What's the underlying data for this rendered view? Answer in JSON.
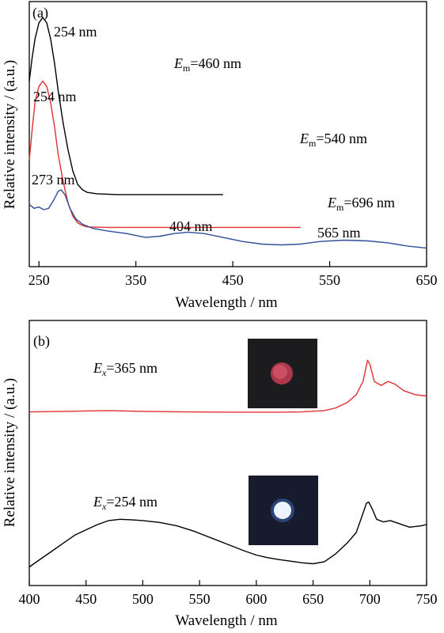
{
  "chart_data": [
    {
      "type": "line",
      "panel_label": "(a)",
      "xlabel": "Wavelength / nm",
      "ylabel": "Relative intensity / (a.u.)",
      "xlim": [
        240,
        650
      ],
      "x_ticks": [
        250,
        350,
        450,
        550,
        650
      ],
      "x_tick_labels": [
        "250",
        "350",
        "450",
        "550",
        "650"
      ],
      "y_ticks_labeled": false,
      "grid": false,
      "series": [
        {
          "color": "#000000",
          "emission_label": {
            "sym": "E",
            "sub": "m",
            "text": "=460 nm"
          },
          "points": [
            [
              240,
              0.7
            ],
            [
              243,
              0.79
            ],
            [
              246,
              0.86
            ],
            [
              250,
              0.92
            ],
            [
              254,
              0.94
            ],
            [
              258,
              0.92
            ],
            [
              262,
              0.86
            ],
            [
              266,
              0.77
            ],
            [
              270,
              0.66
            ],
            [
              275,
              0.54
            ],
            [
              280,
              0.44
            ],
            [
              285,
              0.36
            ],
            [
              290,
              0.31
            ],
            [
              295,
              0.29
            ],
            [
              300,
              0.28
            ],
            [
              310,
              0.275
            ],
            [
              330,
              0.272
            ],
            [
              360,
              0.272
            ],
            [
              400,
              0.272
            ],
            [
              440,
              0.272
            ]
          ],
          "peaks": [
            {
              "label": "254 nm",
              "x": 254
            }
          ]
        },
        {
          "color": "#e03030",
          "emission_label": {
            "sym": "E",
            "sub": "m",
            "text": "=540 nm"
          },
          "points": [
            [
              240,
              0.4
            ],
            [
              243,
              0.52
            ],
            [
              246,
              0.62
            ],
            [
              250,
              0.68
            ],
            [
              254,
              0.7
            ],
            [
              258,
              0.68
            ],
            [
              262,
              0.62
            ],
            [
              266,
              0.53
            ],
            [
              270,
              0.42
            ],
            [
              275,
              0.32
            ],
            [
              280,
              0.24
            ],
            [
              285,
              0.19
            ],
            [
              290,
              0.165
            ],
            [
              295,
              0.155
            ],
            [
              300,
              0.15
            ],
            [
              320,
              0.148
            ],
            [
              360,
              0.148
            ],
            [
              420,
              0.148
            ],
            [
              480,
              0.148
            ],
            [
              520,
              0.148
            ]
          ],
          "peaks": [
            {
              "label": "254 nm",
              "x": 254
            }
          ]
        },
        {
          "color": "#2e4d9a",
          "emission_label": {
            "sym": "E",
            "sub": "m",
            "text": "=696 nm"
          },
          "points": [
            [
              240,
              0.235
            ],
            [
              245,
              0.22
            ],
            [
              250,
              0.225
            ],
            [
              255,
              0.215
            ],
            [
              260,
              0.22
            ],
            [
              265,
              0.25
            ],
            [
              270,
              0.285
            ],
            [
              273,
              0.29
            ],
            [
              277,
              0.27
            ],
            [
              282,
              0.22
            ],
            [
              288,
              0.18
            ],
            [
              295,
              0.16
            ],
            [
              305,
              0.145
            ],
            [
              320,
              0.135
            ],
            [
              340,
              0.125
            ],
            [
              360,
              0.11
            ],
            [
              375,
              0.115
            ],
            [
              390,
              0.125
            ],
            [
              404,
              0.13
            ],
            [
              420,
              0.125
            ],
            [
              440,
              0.11
            ],
            [
              460,
              0.095
            ],
            [
              480,
              0.085
            ],
            [
              500,
              0.082
            ],
            [
              520,
              0.085
            ],
            [
              540,
              0.095
            ],
            [
              565,
              0.1
            ],
            [
              590,
              0.097
            ],
            [
              610,
              0.09
            ],
            [
              630,
              0.078
            ],
            [
              650,
              0.07
            ]
          ],
          "peaks": [
            {
              "label": "273 nm",
              "x": 273
            },
            {
              "label": "404 nm",
              "x": 404
            },
            {
              "label": "565 nm",
              "x": 565
            }
          ]
        }
      ]
    },
    {
      "type": "line",
      "panel_label": "(b)",
      "xlabel": "Wavelength / nm",
      "ylabel": "Relative intensity / (a.u.)",
      "xlim": [
        400,
        750
      ],
      "x_ticks": [
        400,
        450,
        500,
        550,
        600,
        650,
        700,
        750
      ],
      "x_tick_labels": [
        "400",
        "450",
        "500",
        "550",
        "600",
        "650",
        "700",
        "750"
      ],
      "y_ticks_labeled": false,
      "grid": false,
      "series": [
        {
          "color": "#e03030",
          "excitation_label": {
            "sym": "E",
            "sub": "x",
            "text": "=365 nm"
          },
          "points": [
            [
              400,
              0.655
            ],
            [
              430,
              0.657
            ],
            [
              470,
              0.66
            ],
            [
              500,
              0.657
            ],
            [
              540,
              0.655
            ],
            [
              580,
              0.654
            ],
            [
              620,
              0.654
            ],
            [
              640,
              0.655
            ],
            [
              660,
              0.66
            ],
            [
              670,
              0.67
            ],
            [
              680,
              0.69
            ],
            [
              688,
              0.72
            ],
            [
              694,
              0.77
            ],
            [
              698,
              0.85
            ],
            [
              700,
              0.835
            ],
            [
              704,
              0.77
            ],
            [
              710,
              0.755
            ],
            [
              716,
              0.77
            ],
            [
              722,
              0.76
            ],
            [
              730,
              0.735
            ],
            [
              740,
              0.72
            ],
            [
              750,
              0.715
            ]
          ],
          "inset": {
            "description": "red luminescent dot",
            "color": "#d04a5e"
          }
        },
        {
          "color": "#000000",
          "excitation_label": {
            "sym": "E",
            "sub": "x",
            "text": "=254 nm"
          },
          "points": [
            [
              400,
              0.07
            ],
            [
              410,
              0.1
            ],
            [
              420,
              0.13
            ],
            [
              430,
              0.16
            ],
            [
              440,
              0.19
            ],
            [
              450,
              0.21
            ],
            [
              460,
              0.23
            ],
            [
              470,
              0.245
            ],
            [
              480,
              0.25
            ],
            [
              490,
              0.248
            ],
            [
              500,
              0.245
            ],
            [
              515,
              0.238
            ],
            [
              530,
              0.225
            ],
            [
              545,
              0.205
            ],
            [
              560,
              0.18
            ],
            [
              575,
              0.155
            ],
            [
              590,
              0.13
            ],
            [
              600,
              0.115
            ],
            [
              610,
              0.105
            ],
            [
              620,
              0.098
            ],
            [
              630,
              0.092
            ],
            [
              640,
              0.086
            ],
            [
              650,
              0.082
            ],
            [
              660,
              0.09
            ],
            [
              670,
              0.12
            ],
            [
              680,
              0.16
            ],
            [
              688,
              0.2
            ],
            [
              693,
              0.26
            ],
            [
              697,
              0.31
            ],
            [
              699,
              0.315
            ],
            [
              702,
              0.29
            ],
            [
              706,
              0.25
            ],
            [
              712,
              0.24
            ],
            [
              718,
              0.245
            ],
            [
              725,
              0.235
            ],
            [
              735,
              0.22
            ],
            [
              745,
              0.225
            ],
            [
              750,
              0.23
            ]
          ],
          "inset": {
            "description": "white/blue luminescent dot",
            "color": "#e8f2ff"
          }
        }
      ]
    }
  ]
}
